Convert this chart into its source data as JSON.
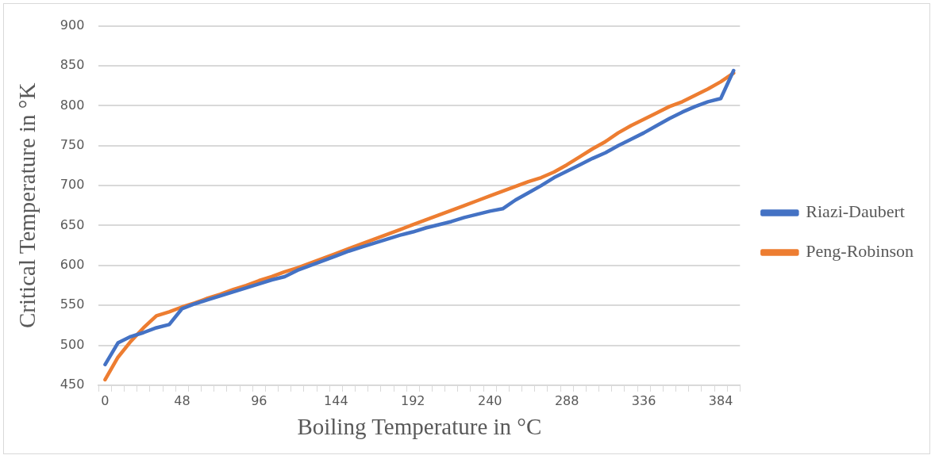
{
  "chart_data": {
    "type": "line",
    "xlabel": "Boiling Temperature in °C",
    "ylabel": "Critical Temperature in °K",
    "categories": [
      "0",
      null,
      null,
      null,
      null,
      null,
      "48",
      null,
      null,
      null,
      null,
      null,
      "96",
      null,
      null,
      null,
      null,
      null,
      "144",
      null,
      null,
      null,
      null,
      null,
      "192",
      null,
      null,
      null,
      null,
      null,
      "240",
      null,
      null,
      null,
      null,
      null,
      "288",
      null,
      null,
      null,
      null,
      null,
      "336",
      null,
      null,
      null,
      null,
      null,
      "384",
      null
    ],
    "series": [
      {
        "name": "Riazi-Daubert",
        "color": "#4472c4",
        "values": [
          476,
          503,
          511,
          516,
          522,
          526,
          546,
          552,
          557,
          562,
          567,
          572,
          577,
          582,
          586,
          594,
          600,
          606,
          612,
          618,
          623,
          628,
          633,
          638,
          642,
          647,
          651,
          655,
          660,
          664,
          668,
          671,
          682,
          691,
          700,
          710,
          718,
          726,
          734,
          741,
          750,
          758,
          766,
          775,
          784,
          792,
          799,
          805,
          809,
          844
        ]
      },
      {
        "name": "Peng-Robinson",
        "color": "#ed7d31",
        "values": [
          457,
          485,
          505,
          522,
          537,
          542,
          548,
          553,
          559,
          564,
          570,
          575,
          581,
          586,
          592,
          597,
          603,
          609,
          615,
          621,
          627,
          633,
          639,
          645,
          651,
          657,
          663,
          669,
          675,
          681,
          687,
          693,
          699,
          705,
          710,
          717,
          726,
          736,
          746,
          755,
          766,
          775,
          783,
          791,
          799,
          805,
          813,
          821,
          830,
          841
        ]
      }
    ],
    "ylim": [
      450,
      900
    ],
    "yticks": [
      450,
      500,
      550,
      600,
      650,
      700,
      750,
      800,
      850,
      900
    ],
    "grid": "y",
    "legend": "right",
    "marker": "none",
    "line_style": "solid"
  }
}
